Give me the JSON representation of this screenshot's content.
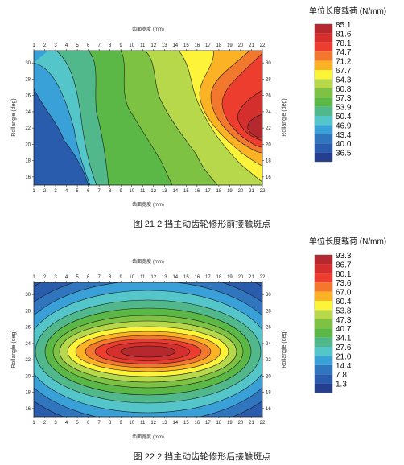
{
  "chart_data": [
    {
      "type": "heatmap",
      "subtype": "filled-contour",
      "caption": "图 21 2 挡主动齿轮修形前接触斑点",
      "xlabel_top": "齿面宽度 (mm)",
      "xlabel_bottom": "齿面宽度 (mm)",
      "ylabel_left": "Rollangle (deg)",
      "ylabel_right": "Rollangle (deg)",
      "x_ticks": [
        "1",
        "2",
        "3",
        "4",
        "5",
        "6",
        "7",
        "8",
        "9",
        "10",
        "11",
        "12",
        "13",
        "14",
        "15",
        "16",
        "17",
        "18",
        "19",
        "20",
        "21",
        "22"
      ],
      "y_ticks": [
        "16",
        "18",
        "20",
        "22",
        "24",
        "26",
        "28",
        "30"
      ],
      "xlim": [
        1,
        22
      ],
      "ylim": [
        15,
        31.5
      ],
      "legend_title": "单位长度载荷  (N/mm)",
      "legend_levels": [
        "85.1",
        "81.6",
        "78.1",
        "74.7",
        "71.2",
        "67.7",
        "64.3",
        "60.8",
        "57.3",
        "53.9",
        "50.4",
        "46.9",
        "43.4",
        "40.0",
        "36.5"
      ],
      "legend_colors": [
        "#b5282e",
        "#d42f2d",
        "#ec3d2f",
        "#f2782d",
        "#fbb225",
        "#fdf43a",
        "#b6d84a",
        "#7dc242",
        "#5cb846",
        "#50b88a",
        "#54c6c9",
        "#3aa1d8",
        "#2f76bf",
        "#2a5cad",
        "#243f8f"
      ],
      "grid": false,
      "legend_position": "right"
    },
    {
      "type": "heatmap",
      "subtype": "filled-contour",
      "caption": "图 22 2 挡主动齿轮修形后接触斑点",
      "xlabel_top": "齿面宽度 (mm)",
      "xlabel_bottom": "齿面宽度 (mm)",
      "ylabel_left": "Rollangle (deg)",
      "ylabel_right": "Rollangle (deg)",
      "x_ticks": [
        "1",
        "2",
        "3",
        "4",
        "5",
        "6",
        "7",
        "8",
        "9",
        "10",
        "11",
        "12",
        "13",
        "14",
        "15",
        "16",
        "17",
        "18",
        "19",
        "20",
        "21",
        "22"
      ],
      "y_ticks": [
        "16",
        "18",
        "20",
        "22",
        "24",
        "26",
        "28",
        "30"
      ],
      "xlim": [
        1,
        22
      ],
      "ylim": [
        15,
        31.5
      ],
      "legend_title": "单位长度载荷  (N/mm)",
      "legend_levels": [
        "93.3",
        "86.7",
        "80.1",
        "73.6",
        "67.0",
        "60.4",
        "53.8",
        "47.3",
        "40.7",
        "34.1",
        "27.6",
        "21.0",
        "14.4",
        "7.8",
        "1.3"
      ],
      "legend_colors": [
        "#b5282e",
        "#d42f2d",
        "#ec3d2f",
        "#f2782d",
        "#fbb225",
        "#fdf43a",
        "#b6d84a",
        "#7dc242",
        "#5cb846",
        "#50b88a",
        "#54c6c9",
        "#3aa1d8",
        "#2f76bf",
        "#2a5cad",
        "#243f8f"
      ],
      "grid": false,
      "legend_position": "right"
    }
  ]
}
